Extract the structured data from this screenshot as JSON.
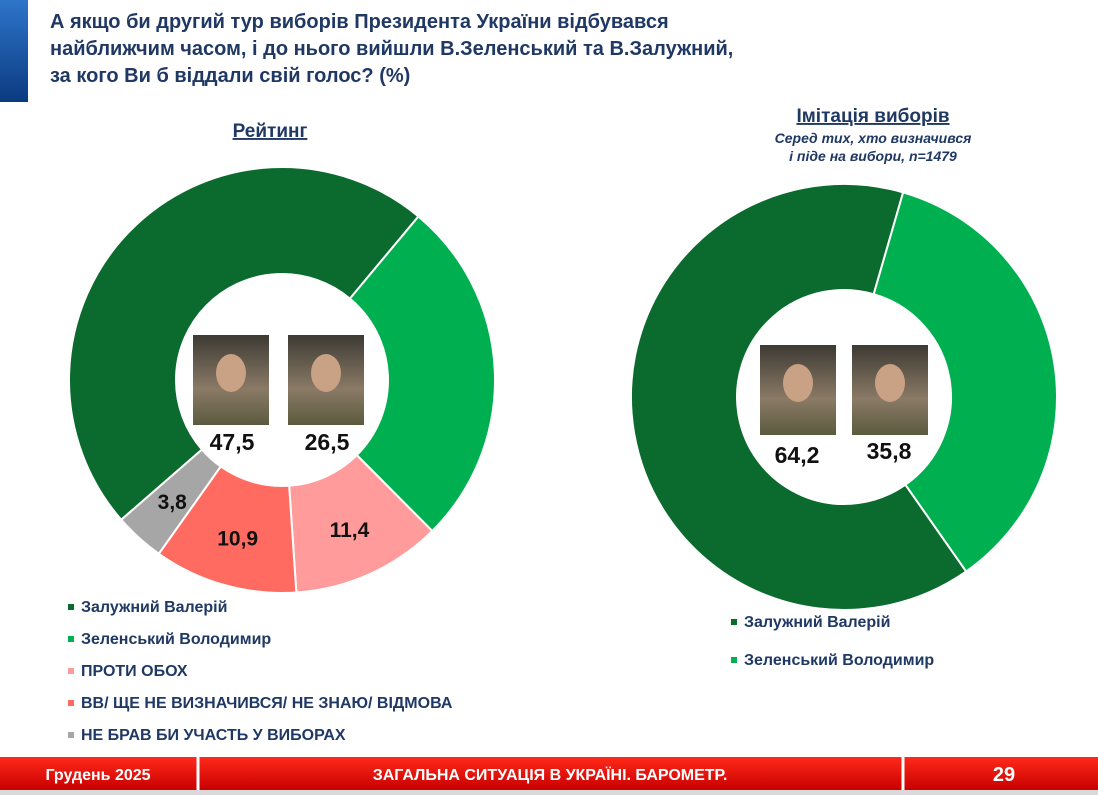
{
  "header": {
    "title": [
      "А якщо би другий тур виборів Президента України відбувався",
      "найближчим часом, і до нього вийшли В.Зеленський та В.Залужний,",
      "за кого Ви б віддали свій голос? (%)"
    ]
  },
  "chart_data": [
    {
      "type": "donut",
      "title": "Рейтинг",
      "categories": [
        "Залужний Валерій",
        "Зеленський Володимир",
        "ПРОТИ ОБОХ",
        "ВВ/ ЩЕ НЕ ВИЗНАЧИВСЯ/ НЕ ЗНАЮ/ ВІДМОВА",
        "НЕ БРАВ БИ УЧАСТЬ У ВИБОРАХ"
      ],
      "values": [
        47.5,
        26.5,
        11.4,
        10.9,
        3.8
      ],
      "value_labels": [
        "47,5",
        "26,5",
        "11,4",
        "10,9",
        "3,8"
      ],
      "colors": [
        "#0b6b2e",
        "#00b050",
        "#ff9b9b",
        "#ff6b61",
        "#a6a6a6"
      ]
    },
    {
      "type": "donut",
      "title": "Імітація виборів",
      "subtitle": [
        "Серед тих, хто визначився",
        "і піде на вибори, n=1479"
      ],
      "categories": [
        "Залужний Валерій",
        "Зеленський Володимир"
      ],
      "values": [
        64.2,
        35.8
      ],
      "value_labels": [
        "64,2",
        "35,8"
      ],
      "colors": [
        "#0b6b2e",
        "#00b050"
      ]
    }
  ],
  "footer": {
    "date": "Грудень 2025",
    "title": "ЗАГАЛЬНА СИТУАЦІЯ В УКРАЇНІ. БАРОМЕТР.",
    "page": 29
  }
}
